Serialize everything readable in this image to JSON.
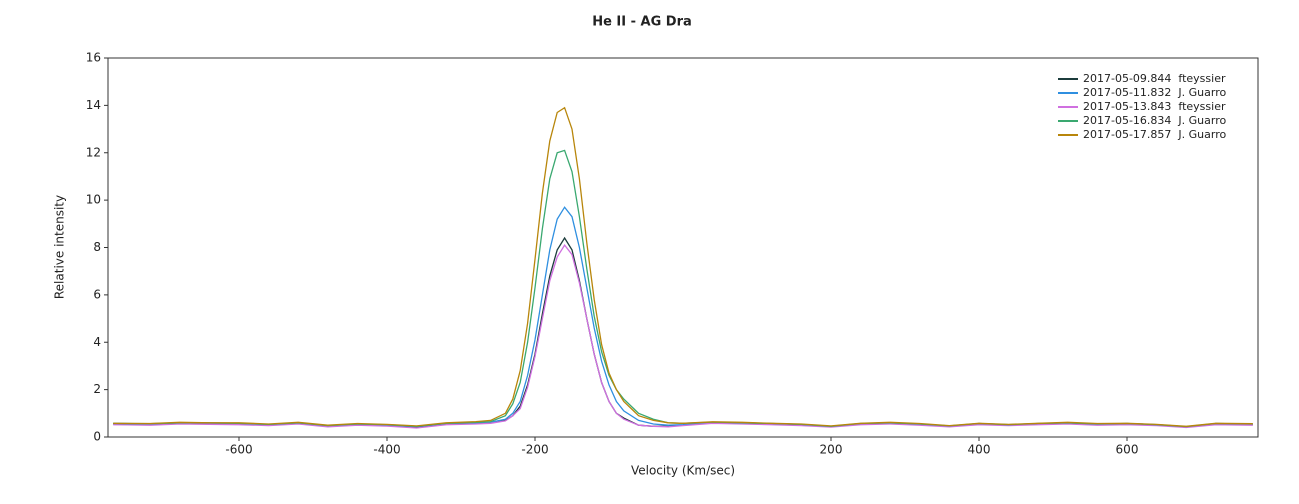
{
  "chart_data": {
    "type": "line",
    "title": "He II - AG Dra",
    "x_label": "Velocity (Km/sec)",
    "y_label": "Relative intensity",
    "xlim": [
      -777,
      777
    ],
    "ylim": [
      0,
      16
    ],
    "xticks": [
      -600,
      -400,
      -200,
      200,
      400,
      600
    ],
    "yticks": [
      0,
      2,
      4,
      6,
      8,
      10,
      12,
      14,
      16
    ],
    "grid": false,
    "legend": "upper right",
    "x": [
      -770,
      -720,
      -680,
      -640,
      -600,
      -560,
      -520,
      -480,
      -440,
      -400,
      -360,
      -320,
      -280,
      -260,
      -240,
      -230,
      -220,
      -210,
      -200,
      -190,
      -180,
      -170,
      -160,
      -150,
      -140,
      -130,
      -120,
      -110,
      -100,
      -90,
      -80,
      -60,
      -40,
      -20,
      0,
      40,
      80,
      120,
      160,
      200,
      240,
      280,
      320,
      360,
      400,
      440,
      480,
      520,
      560,
      600,
      640,
      680,
      720,
      770
    ],
    "series": [
      {
        "name": "2017-05-09.844  fteyssier",
        "color": "#1c3c3c",
        "values": [
          0.55,
          0.52,
          0.58,
          0.55,
          0.55,
          0.5,
          0.58,
          0.45,
          0.52,
          0.48,
          0.4,
          0.55,
          0.58,
          0.6,
          0.7,
          0.9,
          1.3,
          2.2,
          3.5,
          5.2,
          6.8,
          7.9,
          8.4,
          7.9,
          6.6,
          5.0,
          3.5,
          2.3,
          1.5,
          1.0,
          0.8,
          0.5,
          0.45,
          0.45,
          0.5,
          0.6,
          0.58,
          0.55,
          0.5,
          0.45,
          0.55,
          0.58,
          0.52,
          0.45,
          0.55,
          0.5,
          0.55,
          0.58,
          0.52,
          0.55,
          0.5,
          0.42,
          0.55,
          0.52
        ]
      },
      {
        "name": "2017-05-11.832  J. Guarro",
        "color": "#2f8fe0",
        "values": [
          0.58,
          0.55,
          0.6,
          0.58,
          0.57,
          0.52,
          0.6,
          0.47,
          0.55,
          0.5,
          0.44,
          0.57,
          0.6,
          0.62,
          0.75,
          1.0,
          1.5,
          2.6,
          4.1,
          6.0,
          7.9,
          9.2,
          9.7,
          9.3,
          8.0,
          6.3,
          4.6,
          3.2,
          2.2,
          1.5,
          1.1,
          0.7,
          0.55,
          0.5,
          0.52,
          0.62,
          0.6,
          0.57,
          0.53,
          0.45,
          0.57,
          0.6,
          0.55,
          0.47,
          0.57,
          0.52,
          0.57,
          0.6,
          0.55,
          0.57,
          0.52,
          0.44,
          0.57,
          0.55
        ]
      },
      {
        "name": "2017-05-13.843  fteyssier",
        "color": "#d070e0",
        "values": [
          0.52,
          0.5,
          0.55,
          0.53,
          0.52,
          0.48,
          0.55,
          0.43,
          0.5,
          0.46,
          0.38,
          0.52,
          0.55,
          0.58,
          0.68,
          0.9,
          1.2,
          2.1,
          3.4,
          5.0,
          6.6,
          7.6,
          8.1,
          7.7,
          6.5,
          5.0,
          3.5,
          2.3,
          1.5,
          1.0,
          0.75,
          0.5,
          0.45,
          0.43,
          0.48,
          0.58,
          0.55,
          0.52,
          0.48,
          0.42,
          0.52,
          0.55,
          0.5,
          0.43,
          0.52,
          0.48,
          0.52,
          0.55,
          0.5,
          0.52,
          0.48,
          0.4,
          0.52,
          0.5
        ]
      },
      {
        "name": "2017-05-16.834  J. Guarro",
        "color": "#3aa870",
        "values": [
          0.57,
          0.56,
          0.6,
          0.6,
          0.58,
          0.53,
          0.6,
          0.48,
          0.55,
          0.52,
          0.45,
          0.58,
          0.62,
          0.65,
          0.9,
          1.4,
          2.3,
          4.0,
          6.3,
          8.8,
          10.9,
          12.0,
          12.1,
          11.2,
          9.3,
          7.1,
          5.1,
          3.6,
          2.6,
          2.0,
          1.6,
          1.0,
          0.75,
          0.6,
          0.58,
          0.63,
          0.6,
          0.57,
          0.53,
          0.45,
          0.57,
          0.6,
          0.55,
          0.47,
          0.57,
          0.52,
          0.57,
          0.6,
          0.55,
          0.57,
          0.52,
          0.44,
          0.57,
          0.55
        ]
      },
      {
        "name": "2017-05-17.857  J. Guarro",
        "color": "#b8860b",
        "values": [
          0.58,
          0.57,
          0.62,
          0.6,
          0.6,
          0.55,
          0.62,
          0.5,
          0.57,
          0.53,
          0.47,
          0.6,
          0.65,
          0.7,
          1.0,
          1.6,
          2.8,
          4.8,
          7.5,
          10.3,
          12.5,
          13.7,
          13.9,
          13.0,
          10.9,
          8.2,
          5.8,
          3.9,
          2.7,
          2.0,
          1.5,
          0.9,
          0.7,
          0.6,
          0.58,
          0.64,
          0.62,
          0.58,
          0.55,
          0.47,
          0.58,
          0.62,
          0.57,
          0.48,
          0.58,
          0.53,
          0.58,
          0.62,
          0.57,
          0.58,
          0.53,
          0.45,
          0.58,
          0.56
        ]
      }
    ]
  }
}
